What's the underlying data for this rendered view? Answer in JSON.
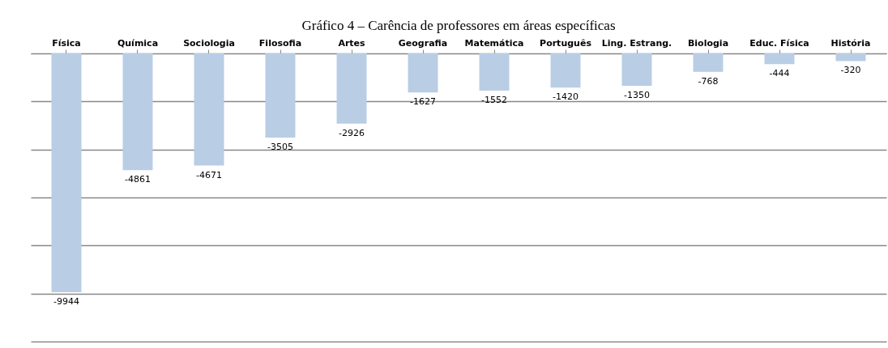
{
  "chart_data": {
    "type": "bar",
    "title": "Gráfico 4 – Carência de professores em áreas específicas",
    "categories": [
      "Física",
      "Química",
      "Sociologia",
      "Filosofia",
      "Artes",
      "Geografia",
      "Matemática",
      "Português",
      "Ling.\nEstrang.",
      "Biologia",
      "Educ. Física",
      "História"
    ],
    "values": [
      -9944,
      -4861,
      -4671,
      -3505,
      -2926,
      -1627,
      -1552,
      -1420,
      -1350,
      -768,
      -444,
      -320
    ],
    "data_labels": true,
    "color": "#b9cde5",
    "ylim": [
      -12000,
      0
    ],
    "yticks": [
      {
        "value": 0,
        "label": null
      },
      {
        "value": -2000,
        "label": null
      },
      {
        "value": -4000,
        "label": null
      },
      {
        "value": -6000,
        "label": null
      },
      {
        "value": -8000,
        "label": null
      },
      {
        "value": -10000,
        "label": null
      },
      {
        "value": -12000,
        "label": null
      }
    ],
    "tick_labels": "x",
    "grid": "y"
  }
}
